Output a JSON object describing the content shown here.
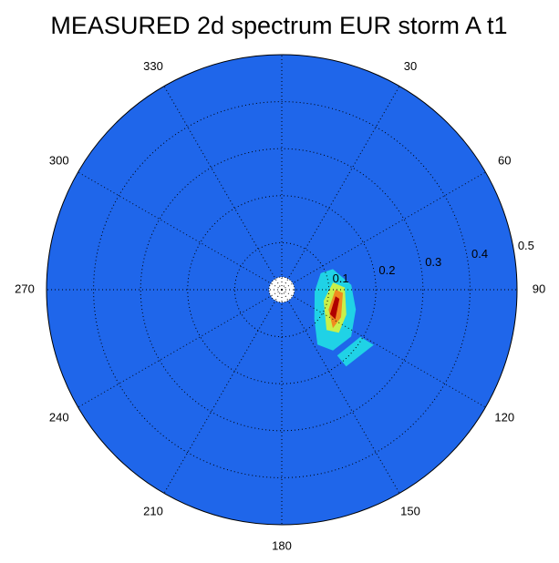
{
  "chart_data": {
    "type": "polar-contour",
    "title": "MEASURED 2d spectrum EUR storm A t1",
    "background_color": "#1f66ea",
    "rlim": [
      0,
      0.5
    ],
    "rticks": [
      0.1,
      0.2,
      0.3,
      0.4,
      0.5
    ],
    "thetaticks": [
      30,
      60,
      90,
      120,
      150,
      180,
      210,
      240,
      270,
      300,
      330
    ],
    "grid": true,
    "contours": [
      {
        "color": "#20d2e6",
        "points": [
          [
            93,
            0.07
          ],
          [
            67,
            0.09
          ],
          [
            68,
            0.117
          ],
          [
            86,
            0.148
          ],
          [
            105,
            0.163
          ],
          [
            124,
            0.178
          ],
          [
            140,
            0.169
          ],
          [
            147,
            0.139
          ],
          [
            132,
            0.093
          ]
        ]
      },
      {
        "color": "#20d2e6",
        "points": [
          [
            140,
            0.183
          ],
          [
            121,
            0.195
          ],
          [
            121,
            0.228
          ],
          [
            140,
            0.213
          ]
        ]
      },
      {
        "color": "#c8f04a",
        "points": [
          [
            105,
            0.092
          ],
          [
            82,
            0.11
          ],
          [
            88,
            0.134
          ],
          [
            111,
            0.147
          ],
          [
            127,
            0.152
          ],
          [
            132,
            0.128
          ]
        ]
      },
      {
        "color": "#f08a20",
        "points": [
          [
            113,
            0.108
          ],
          [
            90,
            0.114
          ],
          [
            93,
            0.13
          ],
          [
            115,
            0.139
          ],
          [
            127,
            0.136
          ]
        ]
      },
      {
        "color": "#b00000",
        "points": [
          [
            117,
            0.115
          ],
          [
            97,
            0.115
          ],
          [
            99,
            0.124
          ],
          [
            119,
            0.13
          ]
        ]
      }
    ]
  }
}
